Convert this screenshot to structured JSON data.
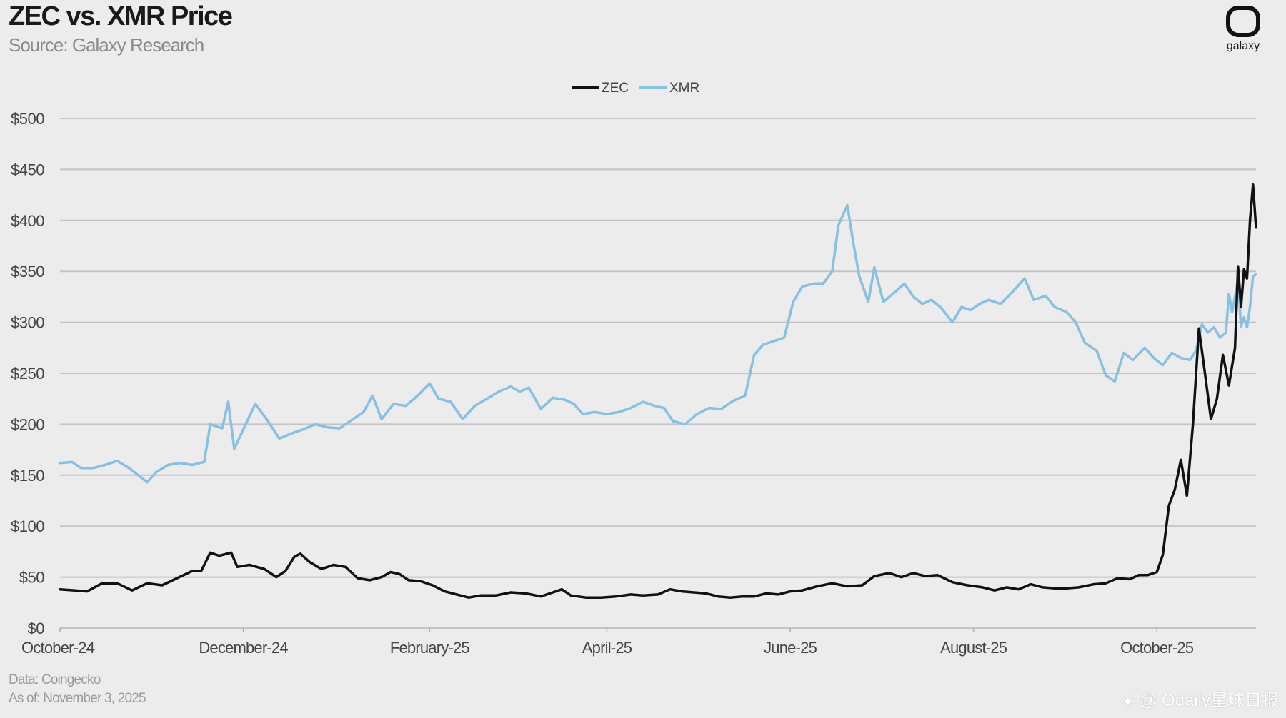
{
  "header": {
    "title": "ZEC vs. XMR Price",
    "subtitle": "Source: Galaxy Research"
  },
  "logo": {
    "icon": "galaxy-logo-icon",
    "label": "galaxy"
  },
  "footer": {
    "data_source": "Data: Coingecko",
    "as_of": "As of: November 3, 2025"
  },
  "watermark": {
    "icon": "diamond-icon",
    "text": "@ Odaily星球日报"
  },
  "colors": {
    "zec": "#111111",
    "xmr": "#86c1e3",
    "grid": "#c4c4c4",
    "background": "#ececec"
  },
  "chart_data": {
    "type": "line",
    "title": "ZEC vs. XMR Price",
    "subtitle": "Source: Galaxy Research",
    "xlabel": "",
    "ylabel": "",
    "x_tick_labels": [
      "October-24",
      "December-24",
      "February-25",
      "April-25",
      "June-25",
      "August-25",
      "October-25"
    ],
    "x_tick_dates": [
      "2024-10-01",
      "2024-12-01",
      "2025-02-01",
      "2025-04-01",
      "2025-06-01",
      "2025-08-01",
      "2025-10-01"
    ],
    "x_range": [
      "2024-10-01",
      "2025-11-03"
    ],
    "y_tick_labels": [
      "$0",
      "$50",
      "$100",
      "$150",
      "$200",
      "$250",
      "$300",
      "$350",
      "$400",
      "$450",
      "$500"
    ],
    "y_ticks": [
      0,
      50,
      100,
      150,
      200,
      250,
      300,
      350,
      400,
      450,
      500
    ],
    "ylim": [
      0,
      500
    ],
    "grid": "horizontal",
    "legend_position": "top-center",
    "series": [
      {
        "name": "ZEC",
        "color": "#111111",
        "points": [
          [
            "2024-10-01",
            38
          ],
          [
            "2024-10-06",
            37
          ],
          [
            "2024-10-10",
            36
          ],
          [
            "2024-10-15",
            44
          ],
          [
            "2024-10-20",
            44
          ],
          [
            "2024-10-25",
            37
          ],
          [
            "2024-10-30",
            44
          ],
          [
            "2024-11-04",
            42
          ],
          [
            "2024-11-09",
            49
          ],
          [
            "2024-11-14",
            56
          ],
          [
            "2024-11-17",
            56
          ],
          [
            "2024-11-20",
            74
          ],
          [
            "2024-11-23",
            71
          ],
          [
            "2024-11-27",
            74
          ],
          [
            "2024-11-29",
            60
          ],
          [
            "2024-12-03",
            62
          ],
          [
            "2024-12-08",
            58
          ],
          [
            "2024-12-12",
            50
          ],
          [
            "2024-12-15",
            56
          ],
          [
            "2024-12-18",
            70
          ],
          [
            "2024-12-20",
            73
          ],
          [
            "2024-12-23",
            65
          ],
          [
            "2024-12-27",
            58
          ],
          [
            "2024-12-31",
            62
          ],
          [
            "2025-01-04",
            60
          ],
          [
            "2025-01-08",
            49
          ],
          [
            "2025-01-12",
            47
          ],
          [
            "2025-01-16",
            50
          ],
          [
            "2025-01-19",
            55
          ],
          [
            "2025-01-22",
            53
          ],
          [
            "2025-01-25",
            47
          ],
          [
            "2025-01-29",
            46
          ],
          [
            "2025-02-02",
            42
          ],
          [
            "2025-02-06",
            36
          ],
          [
            "2025-02-10",
            33
          ],
          [
            "2025-02-14",
            30
          ],
          [
            "2025-02-18",
            32
          ],
          [
            "2025-02-23",
            32
          ],
          [
            "2025-02-28",
            35
          ],
          [
            "2025-03-05",
            34
          ],
          [
            "2025-03-10",
            31
          ],
          [
            "2025-03-14",
            35
          ],
          [
            "2025-03-17",
            38
          ],
          [
            "2025-03-20",
            32
          ],
          [
            "2025-03-25",
            30
          ],
          [
            "2025-03-30",
            30
          ],
          [
            "2025-04-04",
            31
          ],
          [
            "2025-04-09",
            33
          ],
          [
            "2025-04-13",
            32
          ],
          [
            "2025-04-18",
            33
          ],
          [
            "2025-04-22",
            38
          ],
          [
            "2025-04-26",
            36
          ],
          [
            "2025-04-30",
            35
          ],
          [
            "2025-05-04",
            34
          ],
          [
            "2025-05-08",
            31
          ],
          [
            "2025-05-12",
            30
          ],
          [
            "2025-05-16",
            31
          ],
          [
            "2025-05-20",
            31
          ],
          [
            "2025-05-24",
            34
          ],
          [
            "2025-05-28",
            33
          ],
          [
            "2025-06-01",
            36
          ],
          [
            "2025-06-05",
            37
          ],
          [
            "2025-06-10",
            41
          ],
          [
            "2025-06-15",
            44
          ],
          [
            "2025-06-20",
            41
          ],
          [
            "2025-06-25",
            42
          ],
          [
            "2025-06-29",
            51
          ],
          [
            "2025-07-04",
            54
          ],
          [
            "2025-07-08",
            50
          ],
          [
            "2025-07-12",
            54
          ],
          [
            "2025-07-16",
            51
          ],
          [
            "2025-07-20",
            52
          ],
          [
            "2025-07-25",
            45
          ],
          [
            "2025-07-30",
            42
          ],
          [
            "2025-08-04",
            40
          ],
          [
            "2025-08-08",
            37
          ],
          [
            "2025-08-12",
            40
          ],
          [
            "2025-08-16",
            38
          ],
          [
            "2025-08-20",
            43
          ],
          [
            "2025-08-24",
            40
          ],
          [
            "2025-08-28",
            39
          ],
          [
            "2025-09-01",
            39
          ],
          [
            "2025-09-05",
            40
          ],
          [
            "2025-09-10",
            43
          ],
          [
            "2025-09-14",
            44
          ],
          [
            "2025-09-18",
            49
          ],
          [
            "2025-09-22",
            48
          ],
          [
            "2025-09-25",
            52
          ],
          [
            "2025-09-28",
            52
          ],
          [
            "2025-10-01",
            55
          ],
          [
            "2025-10-03",
            72
          ],
          [
            "2025-10-05",
            120
          ],
          [
            "2025-10-07",
            136
          ],
          [
            "2025-10-09",
            165
          ],
          [
            "2025-10-11",
            130
          ],
          [
            "2025-10-13",
            200
          ],
          [
            "2025-10-15",
            294
          ],
          [
            "2025-10-17",
            250
          ],
          [
            "2025-10-19",
            205
          ],
          [
            "2025-10-21",
            225
          ],
          [
            "2025-10-23",
            268
          ],
          [
            "2025-10-25",
            238
          ],
          [
            "2025-10-27",
            275
          ],
          [
            "2025-10-28",
            355
          ],
          [
            "2025-10-29",
            315
          ],
          [
            "2025-10-30",
            352
          ],
          [
            "2025-10-31",
            343
          ],
          [
            "2025-11-01",
            400
          ],
          [
            "2025-11-02",
            435
          ],
          [
            "2025-11-03",
            393
          ]
        ]
      },
      {
        "name": "XMR",
        "color": "#86c1e3",
        "points": [
          [
            "2024-10-01",
            162
          ],
          [
            "2024-10-05",
            163
          ],
          [
            "2024-10-08",
            157
          ],
          [
            "2024-10-12",
            157
          ],
          [
            "2024-10-16",
            160
          ],
          [
            "2024-10-20",
            164
          ],
          [
            "2024-10-24",
            157
          ],
          [
            "2024-10-27",
            150
          ],
          [
            "2024-10-30",
            143
          ],
          [
            "2024-11-02",
            153
          ],
          [
            "2024-11-06",
            160
          ],
          [
            "2024-11-10",
            162
          ],
          [
            "2024-11-14",
            160
          ],
          [
            "2024-11-18",
            163
          ],
          [
            "2024-11-20",
            200
          ],
          [
            "2024-11-24",
            196
          ],
          [
            "2024-11-26",
            222
          ],
          [
            "2024-11-28",
            176
          ],
          [
            "2024-12-01",
            195
          ],
          [
            "2024-12-05",
            220
          ],
          [
            "2024-12-09",
            204
          ],
          [
            "2024-12-13",
            186
          ],
          [
            "2024-12-17",
            191
          ],
          [
            "2024-12-21",
            195
          ],
          [
            "2024-12-25",
            200
          ],
          [
            "2024-12-29",
            197
          ],
          [
            "2025-01-02",
            196
          ],
          [
            "2025-01-06",
            204
          ],
          [
            "2025-01-10",
            212
          ],
          [
            "2025-01-13",
            228
          ],
          [
            "2025-01-16",
            205
          ],
          [
            "2025-01-20",
            220
          ],
          [
            "2025-01-24",
            218
          ],
          [
            "2025-01-28",
            228
          ],
          [
            "2025-02-01",
            240
          ],
          [
            "2025-02-04",
            225
          ],
          [
            "2025-02-08",
            222
          ],
          [
            "2025-02-12",
            205
          ],
          [
            "2025-02-16",
            218
          ],
          [
            "2025-02-20",
            225
          ],
          [
            "2025-02-24",
            232
          ],
          [
            "2025-02-28",
            237
          ],
          [
            "2025-03-03",
            232
          ],
          [
            "2025-03-06",
            236
          ],
          [
            "2025-03-10",
            215
          ],
          [
            "2025-03-14",
            226
          ],
          [
            "2025-03-18",
            224
          ],
          [
            "2025-03-21",
            220
          ],
          [
            "2025-03-24",
            210
          ],
          [
            "2025-03-28",
            212
          ],
          [
            "2025-04-01",
            210
          ],
          [
            "2025-04-05",
            212
          ],
          [
            "2025-04-09",
            216
          ],
          [
            "2025-04-13",
            222
          ],
          [
            "2025-04-17",
            218
          ],
          [
            "2025-04-20",
            216
          ],
          [
            "2025-04-23",
            203
          ],
          [
            "2025-04-27",
            200
          ],
          [
            "2025-05-01",
            210
          ],
          [
            "2025-05-05",
            216
          ],
          [
            "2025-05-09",
            215
          ],
          [
            "2025-05-13",
            223
          ],
          [
            "2025-05-17",
            228
          ],
          [
            "2025-05-20",
            268
          ],
          [
            "2025-05-23",
            278
          ],
          [
            "2025-05-27",
            282
          ],
          [
            "2025-05-30",
            285
          ],
          [
            "2025-06-02",
            320
          ],
          [
            "2025-06-05",
            335
          ],
          [
            "2025-06-09",
            338
          ],
          [
            "2025-06-12",
            338
          ],
          [
            "2025-06-15",
            350
          ],
          [
            "2025-06-17",
            395
          ],
          [
            "2025-06-20",
            415
          ],
          [
            "2025-06-22",
            378
          ],
          [
            "2025-06-24",
            345
          ],
          [
            "2025-06-27",
            320
          ],
          [
            "2025-06-29",
            354
          ],
          [
            "2025-07-02",
            320
          ],
          [
            "2025-07-06",
            330
          ],
          [
            "2025-07-09",
            338
          ],
          [
            "2025-07-12",
            325
          ],
          [
            "2025-07-15",
            318
          ],
          [
            "2025-07-18",
            322
          ],
          [
            "2025-07-21",
            315
          ],
          [
            "2025-07-25",
            300
          ],
          [
            "2025-07-28",
            315
          ],
          [
            "2025-07-31",
            312
          ],
          [
            "2025-08-03",
            318
          ],
          [
            "2025-08-06",
            322
          ],
          [
            "2025-08-10",
            318
          ],
          [
            "2025-08-14",
            330
          ],
          [
            "2025-08-18",
            343
          ],
          [
            "2025-08-21",
            322
          ],
          [
            "2025-08-25",
            326
          ],
          [
            "2025-08-28",
            315
          ],
          [
            "2025-09-01",
            310
          ],
          [
            "2025-09-04",
            300
          ],
          [
            "2025-09-07",
            280
          ],
          [
            "2025-09-11",
            272
          ],
          [
            "2025-09-14",
            248
          ],
          [
            "2025-09-17",
            242
          ],
          [
            "2025-09-20",
            270
          ],
          [
            "2025-09-23",
            263
          ],
          [
            "2025-09-27",
            275
          ],
          [
            "2025-09-30",
            265
          ],
          [
            "2025-10-03",
            258
          ],
          [
            "2025-10-06",
            270
          ],
          [
            "2025-10-09",
            265
          ],
          [
            "2025-10-12",
            263
          ],
          [
            "2025-10-14",
            272
          ],
          [
            "2025-10-16",
            298
          ],
          [
            "2025-10-18",
            290
          ],
          [
            "2025-10-20",
            295
          ],
          [
            "2025-10-22",
            285
          ],
          [
            "2025-10-24",
            290
          ],
          [
            "2025-10-25",
            328
          ],
          [
            "2025-10-26",
            310
          ],
          [
            "2025-10-27",
            325
          ],
          [
            "2025-10-28",
            342
          ],
          [
            "2025-10-29",
            296
          ],
          [
            "2025-10-30",
            305
          ],
          [
            "2025-10-31",
            295
          ],
          [
            "2025-11-01",
            315
          ],
          [
            "2025-11-02",
            345
          ],
          [
            "2025-11-03",
            347
          ]
        ]
      }
    ]
  }
}
